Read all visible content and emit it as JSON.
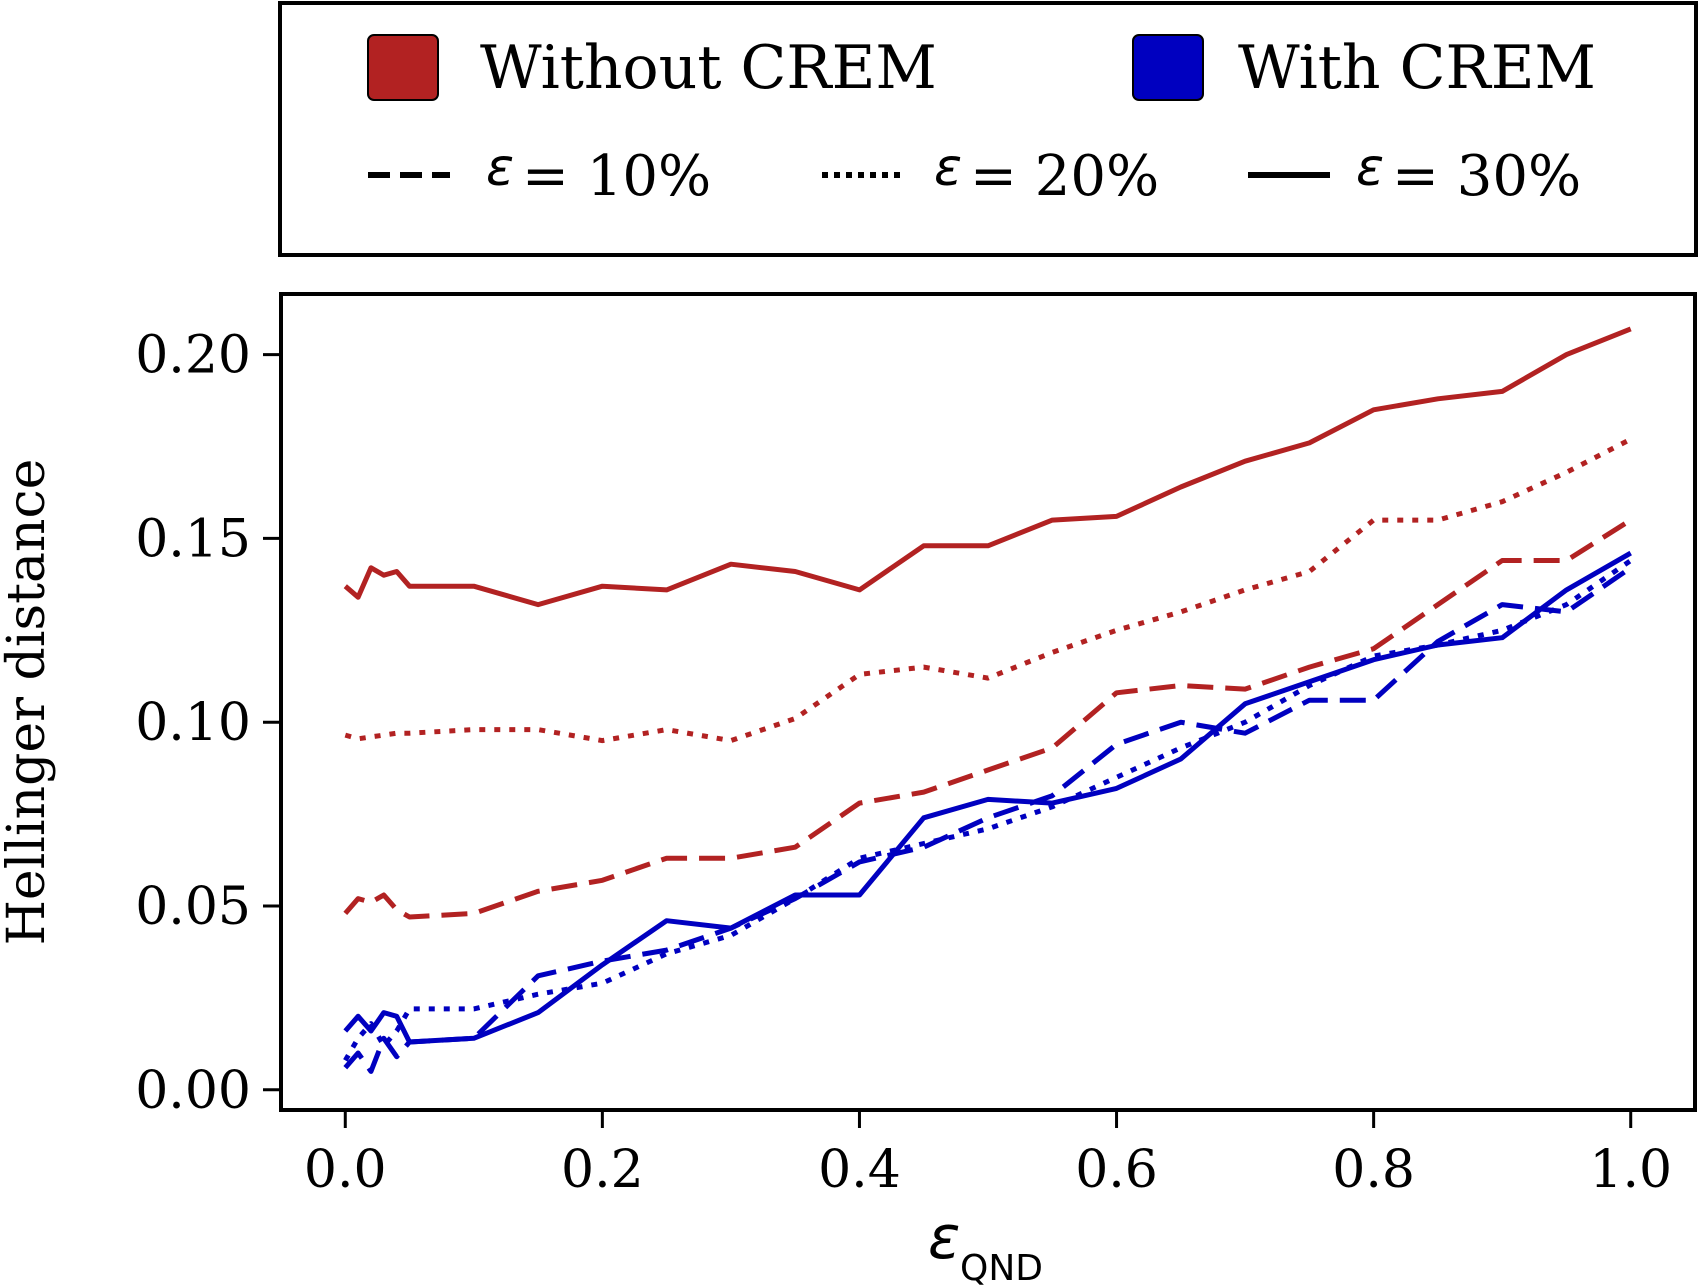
{
  "chart_data": {
    "type": "line",
    "xlabel_symbol": "ε",
    "xlabel_subscript": "QND",
    "ylabel": "Hellinger distance",
    "xlim": [
      -0.05,
      1.05
    ],
    "ylim": [
      -0.0055,
      0.2165
    ],
    "xticks": [
      0.0,
      0.2,
      0.4,
      0.6,
      0.8,
      1.0
    ],
    "xtick_labels": [
      "0.0",
      "0.2",
      "0.4",
      "0.6",
      "0.8",
      "1.0"
    ],
    "yticks": [
      0.0,
      0.05,
      0.1,
      0.15,
      0.2
    ],
    "ytick_labels": [
      "0.00",
      "0.05",
      "0.10",
      "0.15",
      "0.20"
    ],
    "grid": false,
    "legend": {
      "placement": "top (outside plot area)",
      "color_entries": [
        {
          "label": "Without CREM",
          "color": "#b22222"
        },
        {
          "label": "With CREM",
          "color": "#0000c0"
        }
      ],
      "style_entries": [
        {
          "symbol": "ε",
          "label": "= 10%",
          "dash": "dashed"
        },
        {
          "symbol": "ε",
          "label": "= 20%",
          "dash": "dotted"
        },
        {
          "symbol": "ε",
          "label": "= 30%",
          "dash": "solid"
        }
      ]
    },
    "x": [
      0.0,
      0.01,
      0.02,
      0.03,
      0.04,
      0.05,
      0.1,
      0.15,
      0.2,
      0.25,
      0.3,
      0.35,
      0.4,
      0.45,
      0.5,
      0.55,
      0.6,
      0.65,
      0.7,
      0.75,
      0.8,
      0.85,
      0.9,
      0.95,
      1.0
    ],
    "series": [
      {
        "crem": "Without CREM",
        "epsilon": "10%",
        "color": "#b22222",
        "dash": "dashed",
        "values": [
          0.048,
          0.052,
          0.051,
          0.053,
          0.049,
          0.047,
          0.048,
          0.054,
          0.057,
          0.063,
          0.063,
          0.066,
          0.078,
          0.081,
          0.087,
          0.093,
          0.108,
          0.11,
          0.109,
          0.115,
          0.12,
          0.132,
          0.144,
          0.144,
          0.155
        ]
      },
      {
        "crem": "Without CREM",
        "epsilon": "20%",
        "color": "#b22222",
        "dash": "dotted",
        "values": [
          0.0965,
          0.0955,
          0.096,
          0.0965,
          0.097,
          0.097,
          0.098,
          0.098,
          0.095,
          0.098,
          0.095,
          0.101,
          0.113,
          0.115,
          0.112,
          0.119,
          0.125,
          0.13,
          0.136,
          0.141,
          0.155,
          0.155,
          0.16,
          0.168,
          0.177
        ]
      },
      {
        "crem": "Without CREM",
        "epsilon": "30%",
        "color": "#b22222",
        "dash": "solid",
        "values": [
          0.137,
          0.134,
          0.142,
          0.14,
          0.141,
          0.137,
          0.137,
          0.132,
          0.137,
          0.136,
          0.143,
          0.141,
          0.136,
          0.148,
          0.148,
          0.155,
          0.156,
          0.164,
          0.171,
          0.176,
          0.185,
          0.188,
          0.19,
          0.2,
          0.207
        ]
      },
      {
        "crem": "With CREM",
        "epsilon": "10%",
        "color": "#0000c0",
        "dash": "dashed",
        "values": [
          0.006,
          0.01,
          0.005,
          0.014,
          0.009,
          0.013,
          0.014,
          0.031,
          0.035,
          0.038,
          0.044,
          0.052,
          0.062,
          0.066,
          0.074,
          0.08,
          0.094,
          0.1,
          0.097,
          0.106,
          0.106,
          0.122,
          0.132,
          0.13,
          0.142
        ]
      },
      {
        "crem": "With CREM",
        "epsilon": "20%",
        "color": "#0000c0",
        "dash": "dotted",
        "values": [
          0.008,
          0.014,
          0.018,
          0.012,
          0.016,
          0.022,
          0.022,
          0.026,
          0.029,
          0.037,
          0.042,
          0.052,
          0.063,
          0.067,
          0.071,
          0.077,
          0.085,
          0.093,
          0.1,
          0.11,
          0.118,
          0.121,
          0.125,
          0.132,
          0.144
        ]
      },
      {
        "crem": "With CREM",
        "epsilon": "30%",
        "color": "#0000c0",
        "dash": "solid",
        "values": [
          0.016,
          0.02,
          0.016,
          0.021,
          0.02,
          0.013,
          0.014,
          0.021,
          0.034,
          0.046,
          0.044,
          0.053,
          0.053,
          0.074,
          0.079,
          0.078,
          0.082,
          0.09,
          0.105,
          0.111,
          0.117,
          0.121,
          0.123,
          0.136,
          0.146
        ]
      }
    ]
  }
}
